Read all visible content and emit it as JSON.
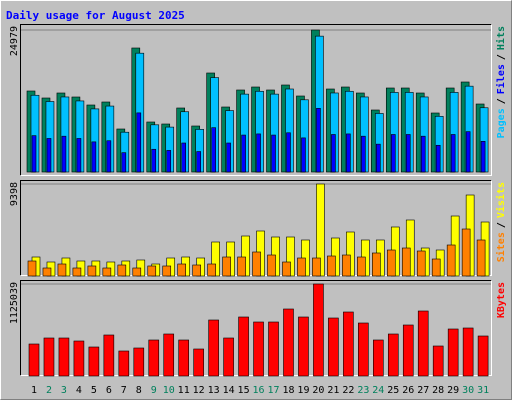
{
  "chart_data": {
    "type": "bar",
    "title": "Daily usage for August 2025",
    "categories": [
      "1",
      "2",
      "3",
      "4",
      "5",
      "6",
      "7",
      "8",
      "9",
      "10",
      "11",
      "12",
      "13",
      "14",
      "15",
      "16",
      "17",
      "18",
      "19",
      "20",
      "21",
      "22",
      "23",
      "24",
      "25",
      "26",
      "27",
      "28",
      "29",
      "30",
      "31"
    ],
    "category_colors": [
      "#000000",
      "#00805c",
      "#00805c",
      "#000000",
      "#000000",
      "#000000",
      "#000000",
      "#000000",
      "#00805c",
      "#00805c",
      "#000000",
      "#000000",
      "#000000",
      "#000000",
      "#000000",
      "#00805c",
      "#00805c",
      "#000000",
      "#000000",
      "#000000",
      "#000000",
      "#000000",
      "#00805c",
      "#00805c",
      "#000000",
      "#000000",
      "#000000",
      "#000000",
      "#000000",
      "#00805c",
      "#00805c"
    ],
    "legend_separator": "/",
    "panels": [
      {
        "ylim": [
          0,
          24979
        ],
        "yticks": [
          24979
        ],
        "series": [
          {
            "name": "Pages",
            "color": "#00c0ff",
            "values": [
              13500,
              12400,
              13200,
              12500,
              11100,
              11600,
              7000,
              20900,
              8300,
              7900,
              10600,
              7500,
              16600,
              10800,
              13700,
              14200,
              13700,
              14600,
              12700,
              23900,
              13900,
              14200,
              13200,
              10300,
              14000,
              14000,
              13200,
              9800,
              14000,
              15100,
              11300
            ]
          },
          {
            "name": "Files",
            "color": "#0000ff",
            "values": [
              6400,
              5900,
              6300,
              5900,
              5300,
              5500,
              3400,
              10400,
              4000,
              3800,
              5100,
              3600,
              7800,
              5100,
              6500,
              6700,
              6500,
              6900,
              6000,
              11200,
              6600,
              6700,
              6300,
              4900,
              6600,
              6600,
              6300,
              4700,
              6600,
              7100,
              5400
            ]
          },
          {
            "name": "Hits",
            "color": "#00805c",
            "values": [
              14249,
              13017,
              13897,
              13193,
              11786,
              12314,
              7564,
              21813,
              8795,
              8444,
              11258,
              8092,
              17415,
              11434,
              14425,
              14952,
              14425,
              15304,
              13369,
              24979,
              14600,
              14952,
              13897,
              10906,
              14776,
              14776,
              13897,
              10379,
              14776,
              15832,
              11962
            ]
          }
        ]
      },
      {
        "ylim": [
          0,
          9398
        ],
        "yticks": [
          9398
        ],
        "series": [
          {
            "name": "Sites",
            "color": "#ff8000",
            "values": [
              1532,
              817,
              1226,
              817,
              1022,
              817,
              1124,
              817,
              1022,
              1022,
              1226,
              1124,
              1226,
              1941,
              1941,
              2452,
              2145,
              1430,
              1839,
              1839,
              2043,
              2145,
              1941,
              2350,
              2656,
              2860,
              2554,
              1737,
              3167,
              4801,
              3678
            ]
          },
          {
            "name": "Visits",
            "color": "#ffff00",
            "values": [
              1941,
              1430,
              1839,
              1532,
              1532,
              1430,
              1532,
              1634,
              1226,
              1839,
              1941,
              1839,
              3473,
              3473,
              4086,
              4597,
              3984,
              3984,
              3678,
              9398,
              3882,
              4495,
              3678,
              3678,
              5006,
              5721,
              2860,
              2656,
              6129,
              8274,
              5516
            ]
          }
        ]
      },
      {
        "ylim": [
          0,
          1125039
        ],
        "yticks": [
          1125039
        ],
        "series": [
          {
            "name": "KBytes",
            "color": "#ff0000",
            "values": [
              391316,
              464692,
              464692,
              428003,
              354631,
              501381,
              305717,
              342402,
              440233,
              513614,
              440233,
              330173,
              684807,
              464692,
              721492,
              660344,
              660344,
              819322,
              721492,
              1125039,
              709263,
              782635,
              648115,
              440233,
              513614,
              623663,
              794863,
              366860,
              574744,
              586977,
              489147
            ]
          }
        ]
      }
    ]
  }
}
